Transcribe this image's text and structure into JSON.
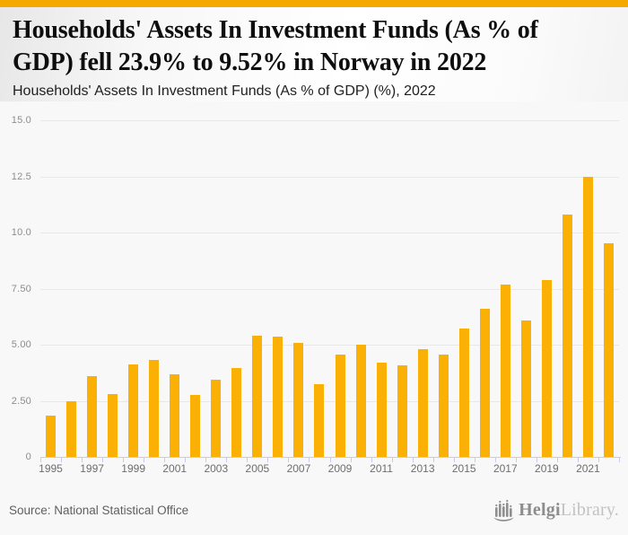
{
  "header": {
    "title": "Households' Assets In Investment Funds (As % of GDP) fell 23.9% to 9.52% in Norway in 2022",
    "subtitle": "Households' Assets In Investment Funds (As % of GDP) (%), 2022"
  },
  "footer": {
    "source": "Source: National Statistical Office",
    "logo_name": "Helgi",
    "logo_suffix": "Library."
  },
  "colors": {
    "accent": "#f5a800",
    "bar": "#fab005",
    "gridline": "#e8e8e8",
    "axis": "#c4cded",
    "chart_background": "#f8f8f8"
  },
  "chart_data": {
    "type": "bar",
    "title": "Households' Assets In Investment Funds (As % of GDP) fell 23.9% to 9.52% in Norway in 2022",
    "subtitle": "Households' Assets In Investment Funds (As % of GDP) (%), 2022",
    "xlabel": "",
    "ylabel": "",
    "ylim": [
      0,
      15
    ],
    "grid": true,
    "legend": false,
    "bar_color": "#fab005",
    "categories": [
      1995,
      1996,
      1997,
      1998,
      1999,
      2000,
      2001,
      2002,
      2003,
      2004,
      2005,
      2006,
      2007,
      2008,
      2009,
      2010,
      2011,
      2012,
      2013,
      2014,
      2015,
      2016,
      2017,
      2018,
      2019,
      2020,
      2021,
      2022
    ],
    "values": [
      1.85,
      2.5,
      3.6,
      2.8,
      4.11,
      4.31,
      3.7,
      2.75,
      3.43,
      3.97,
      5.41,
      5.36,
      5.09,
      3.23,
      4.55,
      5.02,
      4.21,
      4.1,
      4.81,
      4.55,
      5.72,
      6.59,
      7.67,
      6.07,
      7.89,
      10.8,
      12.5,
      9.52
    ],
    "yticks": [
      0,
      2.5,
      5,
      7.5,
      10,
      12.5,
      15
    ],
    "ytick_labels": [
      "0",
      "2.50",
      "5.00",
      "7.50",
      "10.0",
      "12.5",
      "15.0"
    ],
    "xtick_labels": [
      "1995",
      "1997",
      "1999",
      "2001",
      "2003",
      "2005",
      "2007",
      "2009",
      "2011",
      "2013",
      "2015",
      "2017",
      "2019",
      "2021"
    ]
  }
}
